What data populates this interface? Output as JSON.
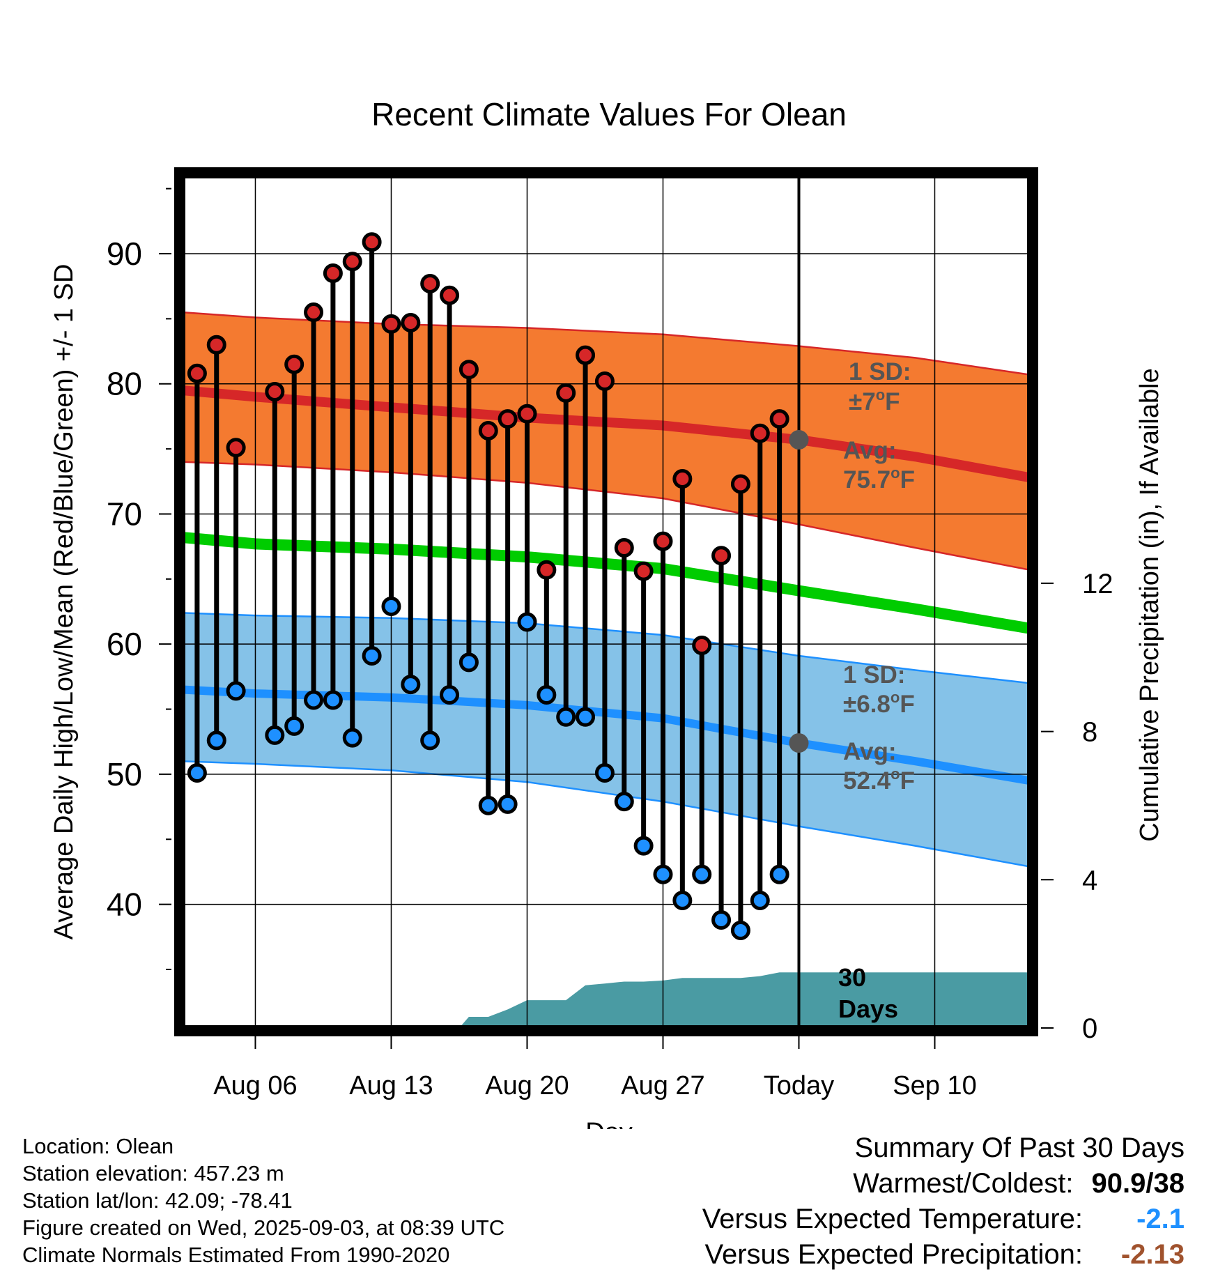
{
  "title": "Recent Climate Values For Olean",
  "axes": {
    "x_label": "Day",
    "y_left_label": "Average Daily High/Low/Mean (Red/Blue/Green) +/- 1 SD",
    "y_right_label": "Cumulative Precipitation (in), If Available",
    "x_tick_labels": [
      "Aug 06",
      "Aug 13",
      "Aug 20",
      "Aug 27",
      "Today",
      "Sep 10"
    ],
    "y_left_ticks": [
      "40",
      "50",
      "60",
      "70",
      "80",
      "90"
    ],
    "y_right_ticks": [
      "0",
      "4",
      "8",
      "12"
    ]
  },
  "annotations": {
    "high_sd_label": "1 SD:",
    "high_sd_value": "±7°F",
    "high_avg_label": "Avg:",
    "high_avg_value": "75.7°F",
    "low_sd_label": "1 SD:",
    "low_sd_value": "±6.8°F",
    "low_avg_label": "Avg:",
    "low_avg_value": "52.4°F",
    "window_label_1": "30",
    "window_label_2": "Days"
  },
  "footer": {
    "location": "Location: Olean",
    "elevation": "Station elevation: 457.23 m",
    "latlon": "Station lat/lon: 42.09; -78.41",
    "created": "Figure created on Wed, 2025-09-03, at 08:39 UTC",
    "normals": "Climate Normals Estimated From 1990-2020"
  },
  "summary": {
    "heading": "Summary Of Past 30 Days",
    "warmest_label": "Warmest/Coldest:",
    "warmest_value": "90.9/38",
    "temp_label": "Versus Expected Temperature:",
    "temp_value": "-2.1",
    "precip_label": "Versus Expected Precipitation:",
    "precip_value": "-2.13"
  },
  "colors": {
    "high_band": "#f47a30",
    "high_mean": "#d62728",
    "low_band": "#85c2e8",
    "low_mean": "#1e90ff",
    "mean_line": "#00cc00",
    "precip": "#4a9ba3",
    "high_marker": "#d62728",
    "low_marker": "#1e90ff",
    "temp_value_color": "#1e90ff",
    "precip_value_color": "#a0522d",
    "annotation_text": "#555555"
  },
  "chart_data": {
    "type": "line",
    "x_unit": "day (Aug 1 = 1)",
    "xlim": [
      2.25,
      45.9
    ],
    "ylim": [
      30.5,
      96
    ],
    "y2lim": [
      0,
      23
    ],
    "today": 34,
    "x_ticks": [
      6,
      13,
      20,
      27,
      34,
      41
    ],
    "y_ticks": [
      40,
      50,
      60,
      70,
      80,
      90
    ],
    "y2_ticks": [
      0,
      4,
      8,
      12
    ],
    "grid": true,
    "daily": {
      "x": [
        3,
        4,
        5,
        6,
        7,
        8,
        9,
        10,
        11,
        12,
        13,
        14,
        15,
        16,
        17,
        18,
        19,
        20,
        21,
        22,
        23,
        24,
        25,
        26,
        27,
        28,
        29,
        30,
        31,
        32,
        33
      ],
      "high": [
        80.8,
        83,
        75.1,
        null,
        79.4,
        81.5,
        85.5,
        88.5,
        89.4,
        90.9,
        84.6,
        84.7,
        87.7,
        86.8,
        81.1,
        76.4,
        77.3,
        77.7,
        65.7,
        79.3,
        82.2,
        80.2,
        67.4,
        65.6,
        67.9,
        72.7,
        59.9,
        66.8,
        72.3,
        76.2,
        77.3
      ],
      "low": [
        50.1,
        52.6,
        56.4,
        null,
        53,
        53.7,
        55.7,
        55.7,
        52.8,
        59.1,
        62.9,
        56.9,
        52.6,
        56.1,
        58.6,
        47.6,
        47.7,
        61.7,
        56.1,
        54.4,
        54.4,
        50.1,
        47.9,
        44.5,
        42.3,
        40.3,
        42.3,
        38.8,
        38,
        40.3,
        42.3
      ]
    },
    "normal_high": {
      "x": [
        2.25,
        6,
        13,
        20,
        27,
        34,
        40,
        45.9
      ],
      "values": [
        79.5,
        79,
        78.2,
        77.4,
        76.8,
        75.7,
        74.4,
        72.8
      ]
    },
    "normal_high_upper": {
      "x": [
        2.25,
        6,
        13,
        20,
        27,
        34,
        40,
        45.9
      ],
      "values": [
        85.5,
        85.1,
        84.6,
        84.3,
        83.8,
        82.9,
        82,
        80.7
      ]
    },
    "normal_high_lower": {
      "x": [
        2.25,
        6,
        13,
        20,
        27,
        34,
        40,
        45.9
      ],
      "values": [
        74,
        73.8,
        73.2,
        72.4,
        71.2,
        69.2,
        67.4,
        65.7
      ]
    },
    "normal_mean": {
      "x": [
        2.25,
        6,
        13,
        20,
        27,
        34,
        40,
        45.9
      ],
      "values": [
        68.2,
        67.7,
        67.3,
        66.7,
        65.8,
        64.1,
        62.7,
        61.2
      ]
    },
    "normal_low": {
      "x": [
        2.25,
        6,
        13,
        20,
        27,
        34,
        40,
        45.9
      ],
      "values": [
        56.5,
        56.2,
        55.9,
        55.3,
        54.3,
        52.4,
        51,
        49.5
      ]
    },
    "normal_low_upper": {
      "x": [
        2.25,
        6,
        13,
        20,
        27,
        34,
        40,
        45.9
      ],
      "values": [
        62.4,
        62.2,
        62,
        61.6,
        60.7,
        59.1,
        58,
        57
      ]
    },
    "normal_low_lower": {
      "x": [
        2.25,
        6,
        13,
        20,
        27,
        34,
        40,
        45.9
      ],
      "values": [
        51,
        50.8,
        50.3,
        49.4,
        47.9,
        46,
        44.5,
        42.9
      ]
    },
    "cumulative_precip": {
      "x": [
        2.25,
        15.5,
        16.5,
        17,
        18,
        19,
        20,
        21,
        22,
        23,
        24,
        25,
        26,
        27,
        28,
        29,
        30,
        31,
        32,
        33,
        34,
        45.9
      ],
      "values": [
        0,
        0,
        0,
        0.3,
        0.3,
        0.5,
        0.75,
        0.75,
        0.75,
        1.15,
        1.2,
        1.25,
        1.25,
        1.28,
        1.35,
        1.35,
        1.35,
        1.35,
        1.4,
        1.5,
        1.5,
        1.5
      ]
    }
  }
}
